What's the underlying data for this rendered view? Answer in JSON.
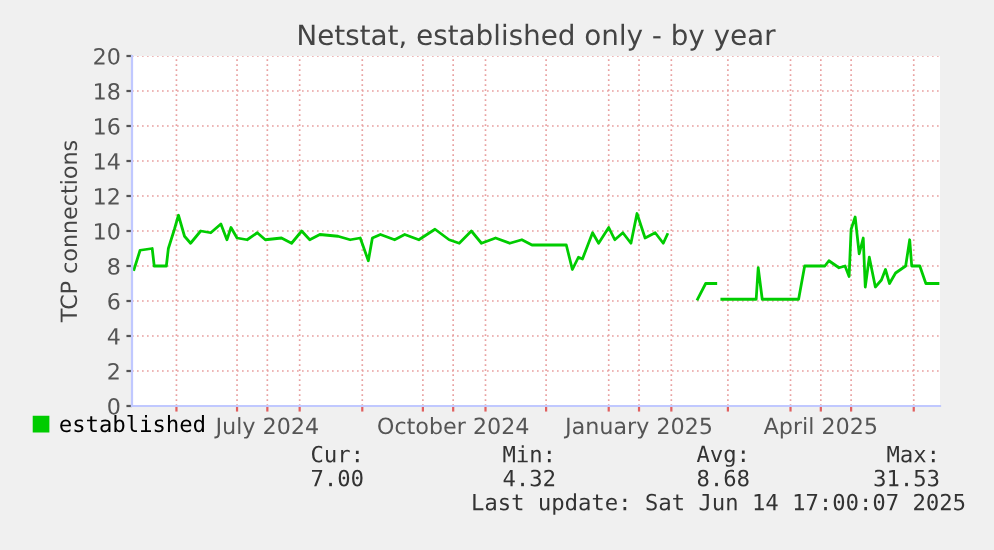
{
  "chart_data": {
    "type": "line",
    "title": "Netstat, established only - by year",
    "ylabel": "TCP connections",
    "x": [
      "2024-05-11",
      "2024-05-14",
      "2024-05-20",
      "2024-05-21",
      "2024-05-27",
      "2024-05-28",
      "2024-05-31",
      "2024-06-02",
      "2024-06-05",
      "2024-06-08",
      "2024-06-13",
      "2024-06-18",
      "2024-06-23",
      "2024-06-26",
      "2024-06-28",
      "2024-07-01",
      "2024-07-06",
      "2024-07-11",
      "2024-07-15",
      "2024-07-23",
      "2024-07-28",
      "2024-08-02",
      "2024-08-06",
      "2024-08-11",
      "2024-08-20",
      "2024-08-26",
      "2024-08-31",
      "2024-09-04",
      "2024-09-06",
      "2024-09-10",
      "2024-09-17",
      "2024-09-22",
      "2024-09-29",
      "2024-10-07",
      "2024-10-14",
      "2024-10-19",
      "2024-10-25",
      "2024-10-30",
      "2024-11-06",
      "2024-11-13",
      "2024-11-19",
      "2024-11-24",
      "2024-12-11",
      "2024-12-14",
      "2024-12-17",
      "2024-12-19",
      "2024-12-24",
      "2024-12-27",
      "2025-01-01",
      "2025-01-04",
      "2025-01-08",
      "2025-01-12",
      "2025-01-15",
      "2025-01-19",
      "2025-01-24",
      "2025-01-28",
      "2025-01-30",
      "2025-02-05",
      "2025-02-14",
      "2025-02-18",
      "2025-02-23",
      "2025-02-24",
      "2025-02-26",
      "2025-03-15",
      "2025-03-16",
      "2025-03-18",
      "2025-04-05",
      "2025-04-08",
      "2025-04-18",
      "2025-04-20",
      "2025-04-25",
      "2025-04-28",
      "2025-04-30",
      "2025-05-01",
      "2025-05-03",
      "2025-05-05",
      "2025-05-07",
      "2025-05-08",
      "2025-05-10",
      "2025-05-13",
      "2025-05-16",
      "2025-05-18",
      "2025-05-20",
      "2025-05-23",
      "2025-05-28",
      "2025-05-30",
      "2025-05-31",
      "2025-06-04",
      "2025-06-07",
      "2025-06-13"
    ],
    "series": [
      {
        "name": "established",
        "color": "#00cc00",
        "values": [
          7.8,
          8.9,
          9,
          8,
          8,
          9,
          10.1,
          10.9,
          9.7,
          9.3,
          10,
          9.9,
          10.4,
          9.5,
          10.2,
          9.6,
          9.5,
          9.9,
          9.5,
          9.6,
          9.3,
          10,
          9.5,
          9.8,
          9.7,
          9.5,
          9.6,
          8.3,
          9.6,
          9.8,
          9.5,
          9.8,
          9.5,
          10.1,
          9.5,
          9.3,
          10,
          9.3,
          9.6,
          9.3,
          9.5,
          9.2,
          9.2,
          7.8,
          8.5,
          8.4,
          9.9,
          9.3,
          10.2,
          9.5,
          9.9,
          9.3,
          11,
          9.6,
          9.9,
          9.3,
          9.8,
          null,
          6.1,
          7,
          7,
          null,
          6.1,
          6.1,
          7.9,
          6.1,
          6.1,
          8,
          8,
          8.3,
          7.9,
          8,
          7.4,
          10.1,
          10.8,
          8.7,
          9.6,
          6.8,
          8.5,
          6.8,
          7.2,
          7.8,
          7,
          7.6,
          8,
          9.5,
          8,
          8,
          7,
          7
        ]
      }
    ],
    "xlim": [
      "2024-05-10",
      "2025-06-14"
    ],
    "xticks": [
      {
        "value": "2024-06-01",
        "label": null
      },
      {
        "value": "2024-07-01",
        "label": null
      },
      {
        "value": "2024-07-16",
        "label": "July 2024"
      },
      {
        "value": "2024-08-01",
        "label": null
      },
      {
        "value": "2024-09-01",
        "label": null
      },
      {
        "value": "2024-10-01",
        "label": null
      },
      {
        "value": "2024-10-16",
        "label": "October 2024"
      },
      {
        "value": "2024-11-01",
        "label": null
      },
      {
        "value": "2024-12-01",
        "label": null
      },
      {
        "value": "2025-01-01",
        "label": null
      },
      {
        "value": "2025-01-16",
        "label": "January 2025"
      },
      {
        "value": "2025-02-01",
        "label": null
      },
      {
        "value": "2025-03-01",
        "label": null
      },
      {
        "value": "2025-04-01",
        "label": null
      },
      {
        "value": "2025-04-16",
        "label": "April 2025"
      },
      {
        "value": "2025-05-01",
        "label": null
      },
      {
        "value": "2025-06-01",
        "label": null
      }
    ],
    "ylim": [
      0,
      20
    ],
    "yticks": [
      0,
      2,
      4,
      6,
      8,
      10,
      12,
      14,
      16,
      18,
      20
    ],
    "grid": true,
    "legend": "bottom",
    "marker": "none",
    "line_style": "solid",
    "annotations": [
      "Cur:",
      "Min:",
      "Avg:",
      "Max:",
      "7.00",
      "4.32",
      "8.68",
      "31.53",
      "Last update: Sat Jun 14 17:00:07 2025"
    ]
  }
}
